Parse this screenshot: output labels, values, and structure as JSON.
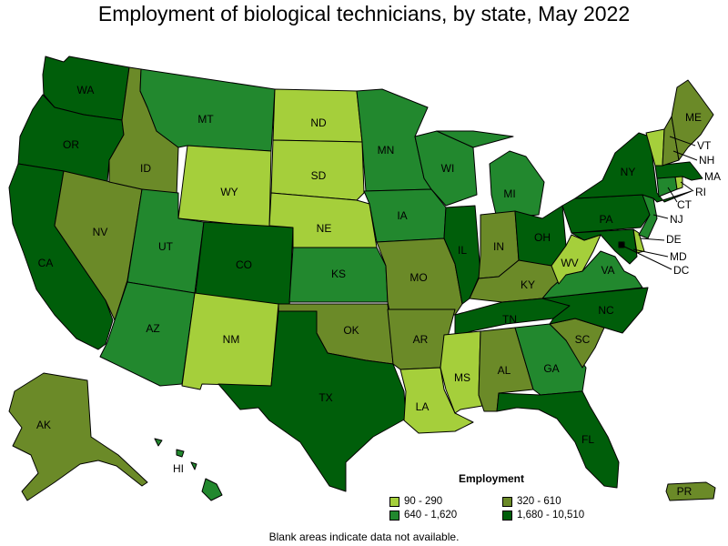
{
  "title": "Employment of biological technicians, by state, May 2022",
  "legend": {
    "title": "Employment",
    "bins": [
      {
        "label": "90 - 290",
        "color": "#a5cf3b"
      },
      {
        "label": "320 - 610",
        "color": "#6b8a28"
      },
      {
        "label": "640 - 1,620",
        "color": "#22882e"
      },
      {
        "label": "1,680 - 10,510",
        "color": "#005e0a"
      }
    ]
  },
  "note": "Blank areas indicate data not available.",
  "states": {
    "WA": 3,
    "OR": 3,
    "CA": 3,
    "NV": 1,
    "ID": 1,
    "MT": 2,
    "WY": 0,
    "UT": 2,
    "AZ": 2,
    "CO": 3,
    "NM": 0,
    "ND": 0,
    "SD": 0,
    "NE": 0,
    "KS": 2,
    "OK": 1,
    "TX": 3,
    "MN": 2,
    "IA": 2,
    "MO": 1,
    "AR": 1,
    "LA": 0,
    "WI": 2,
    "IL": 3,
    "MI": 2,
    "IN": 1,
    "OH": 3,
    "KY": 1,
    "TN": 3,
    "MS": 0,
    "AL": 1,
    "GA": 2,
    "FL": 3,
    "SC": 1,
    "NC": 3,
    "VA": 2,
    "WV": 0,
    "MD": 3,
    "DE": 0,
    "DC": 3,
    "PA": 3,
    "NJ": 2,
    "NY": 3,
    "CT": 2,
    "RI": 0,
    "MA": 3,
    "VT": 0,
    "NH": 1,
    "ME": 1,
    "AK": 1,
    "HI": 2,
    "PR": 1
  }
}
